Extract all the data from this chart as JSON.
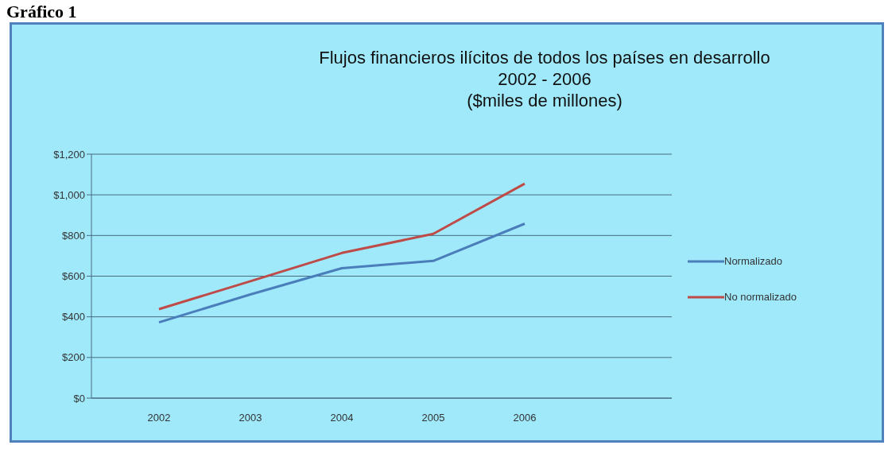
{
  "chart_data": {
    "type": "line",
    "title": "Flujos financieros ilícitos de todos los países en desarrollo\n2002 - 2006\n($miles de millones)",
    "annotations": [
      "Gráfico 1"
    ],
    "categories": [
      "2002",
      "2003",
      "2004",
      "2005",
      "2006"
    ],
    "series": [
      {
        "name": "Normalizado",
        "color": "#4a7ebb",
        "values": [
          373,
          510,
          639,
          675,
          858
        ]
      },
      {
        "name": "No normalizado",
        "color": "#be4b48",
        "values": [
          438,
          575,
          714,
          808,
          1055
        ]
      }
    ],
    "ylim": [
      0,
      1200
    ],
    "yticks": [
      {
        "value": 0,
        "label": "$0"
      },
      {
        "value": 200,
        "label": "$200"
      },
      {
        "value": 400,
        "label": "$400"
      },
      {
        "value": 600,
        "label": "$600"
      },
      {
        "value": 800,
        "label": "$800"
      },
      {
        "value": 1000,
        "label": "$1,000"
      },
      {
        "value": 1200,
        "label": "$1,200"
      }
    ],
    "grid": "y",
    "legend": "right",
    "marker": "none",
    "line_style": "solid"
  }
}
